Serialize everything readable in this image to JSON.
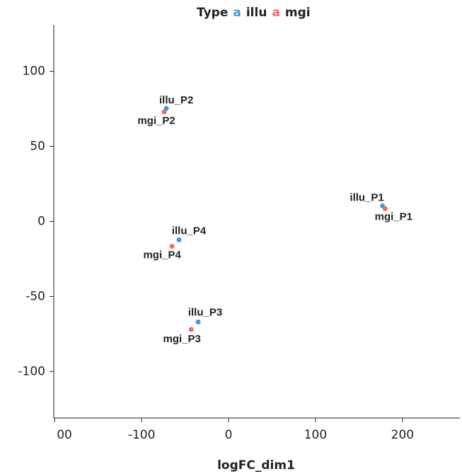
{
  "chart_data": {
    "type": "scatter",
    "title": "Type",
    "legend_symbol": "a",
    "x_label": "logFC_dim1",
    "xlim": [
      -201,
      266
    ],
    "xticks": [
      {
        "value": -200,
        "label": "00"
      },
      -100,
      0,
      100,
      200
    ],
    "ylim": [
      -131,
      131
    ],
    "yticks": [
      100,
      50,
      0,
      -50,
      -100
    ],
    "grid": false,
    "legend": "top",
    "series": [
      {
        "name": "illu",
        "color": "#3b9bd8",
        "labels": [
          "illu_P1",
          "illu_P2",
          "illu_P3",
          "illu_P4"
        ],
        "x": [
          177,
          -71.5,
          -35,
          -57
        ],
        "values": [
          10.4,
          75.3,
          -67,
          -12.3
        ]
      },
      {
        "name": "mgi",
        "color": "#ef6a6a",
        "labels": [
          "mgi_P1",
          "mgi_P2",
          "mgi_P3",
          "mgi_P4"
        ],
        "x": [
          180,
          -74,
          -43,
          -65
        ],
        "values": [
          8.5,
          73,
          -72,
          -16.6
        ]
      }
    ]
  }
}
